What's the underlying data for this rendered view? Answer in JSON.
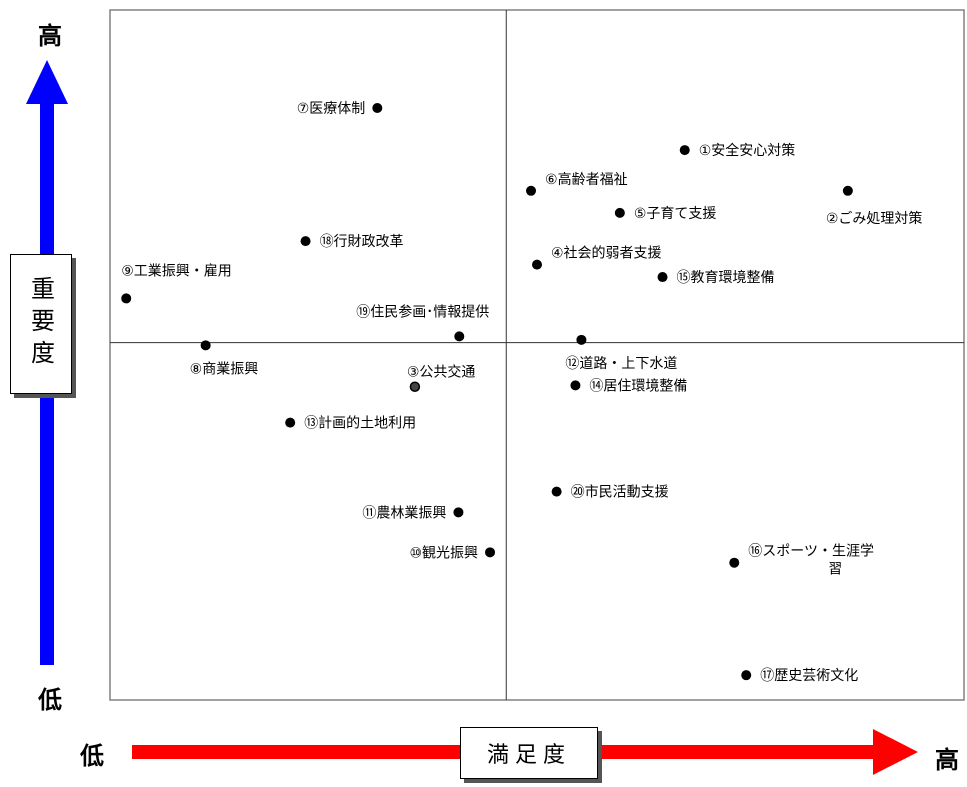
{
  "axis": {
    "y_label": "重要度",
    "x_label": "満足度",
    "y_high": "高",
    "y_low": "低",
    "x_low": "低",
    "x_high": "高",
    "y_arrow_color": "#0000ff",
    "x_arrow_color": "#ff0000"
  },
  "chart_data": {
    "type": "scatter",
    "title": "",
    "xlabel": "満足度",
    "ylabel": "重要度",
    "xlim": [
      0,
      100
    ],
    "ylim": [
      0,
      100
    ],
    "grid": false,
    "quadrant_lines": {
      "x": 46.4,
      "y": 51.8
    },
    "points": [
      {
        "label": "①安全安心対策",
        "x": 67.3,
        "y": 79.7,
        "label_side": "right"
      },
      {
        "label": "②ごみ処理対策",
        "x": 86.4,
        "y": 73.8,
        "label_side": "below"
      },
      {
        "label": "③公共交通",
        "x": 35.7,
        "y": 45.4,
        "label_side": "above",
        "marker": "ring"
      },
      {
        "label": "④社会的弱者支援",
        "x": 50.0,
        "y": 63.1,
        "label_side": "right-up"
      },
      {
        "label": "⑤子育て支援",
        "x": 59.7,
        "y": 70.6,
        "label_side": "right"
      },
      {
        "label": "⑥高齢者福祉",
        "x": 49.3,
        "y": 73.8,
        "label_side": "right-up"
      },
      {
        "label": "⑦医療体制",
        "x": 31.3,
        "y": 85.8,
        "label_side": "left"
      },
      {
        "label": "⑧商業振興",
        "x": 11.2,
        "y": 51.4,
        "label_side": "below"
      },
      {
        "label": "⑨工業振興・雇用",
        "x": 1.9,
        "y": 58.2,
        "label_side": "above"
      },
      {
        "label": "⑩観光振興",
        "x": 44.5,
        "y": 21.4,
        "label_side": "left"
      },
      {
        "label": "⑪農林業振興",
        "x": 40.8,
        "y": 27.2,
        "label_side": "left"
      },
      {
        "label": "⑫道路・上下水道",
        "x": 55.2,
        "y": 52.2,
        "label_side": "below"
      },
      {
        "label": "⑬計画的土地利用",
        "x": 21.1,
        "y": 40.2,
        "label_side": "right"
      },
      {
        "label": "⑭居住環境整備",
        "x": 54.5,
        "y": 45.6,
        "label_side": "right"
      },
      {
        "label": "⑮教育環境整備",
        "x": 64.7,
        "y": 61.3,
        "label_side": "right"
      },
      {
        "label": "⑯スポーツ・生涯学習",
        "x": 73.1,
        "y": 19.9,
        "label_side": "right-up",
        "label_lines": [
          "⑯スポーツ・生涯学",
          "習"
        ]
      },
      {
        "label": "⑰歴史芸術文化",
        "x": 74.5,
        "y": 3.6,
        "label_side": "right"
      },
      {
        "label": "⑱行財政改革",
        "x": 22.9,
        "y": 66.5,
        "label_side": "right"
      },
      {
        "label": "⑲住民参画･情報提供",
        "x": 40.9,
        "y": 52.7,
        "label_side": "above-left"
      },
      {
        "label": "⑳市民活動支援",
        "x": 52.3,
        "y": 30.2,
        "label_side": "right"
      }
    ]
  }
}
